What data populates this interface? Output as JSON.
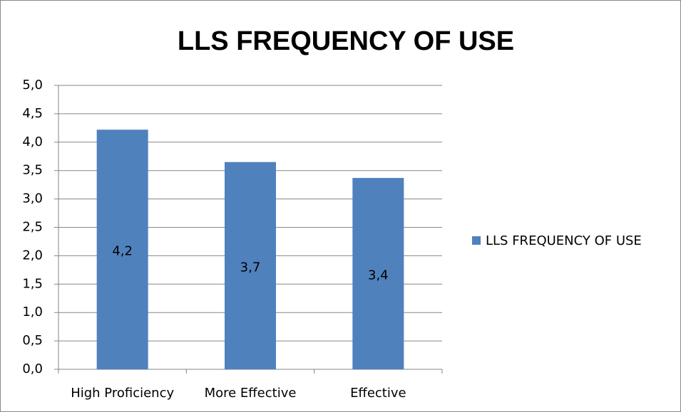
{
  "chart_data": {
    "type": "bar",
    "title": "LLS FREQUENCY OF USE",
    "categories": [
      "High Proficiency",
      "More Effective",
      "Effective"
    ],
    "series": [
      {
        "name": "LLS FREQUENCY OF USE",
        "color": "#4f81bd",
        "values": [
          4.22,
          3.65,
          3.37
        ],
        "value_labels": [
          "4,2",
          "3,7",
          "3,4"
        ]
      }
    ],
    "ylim": [
      0,
      5
    ],
    "yticks": [
      {
        "value": 0,
        "label": "0,0"
      },
      {
        "value": 0.5,
        "label": "0,5"
      },
      {
        "value": 1,
        "label": "1,0"
      },
      {
        "value": 1.5,
        "label": "1,5"
      },
      {
        "value": 2,
        "label": "2,0"
      },
      {
        "value": 2.5,
        "label": "2,5"
      },
      {
        "value": 3,
        "label": "3,0"
      },
      {
        "value": 3.5,
        "label": "3,5"
      },
      {
        "value": 4,
        "label": "4,0"
      },
      {
        "value": 4.5,
        "label": "4,5"
      },
      {
        "value": 5,
        "label": "5,0"
      }
    ],
    "grid": true,
    "legend": "right"
  }
}
